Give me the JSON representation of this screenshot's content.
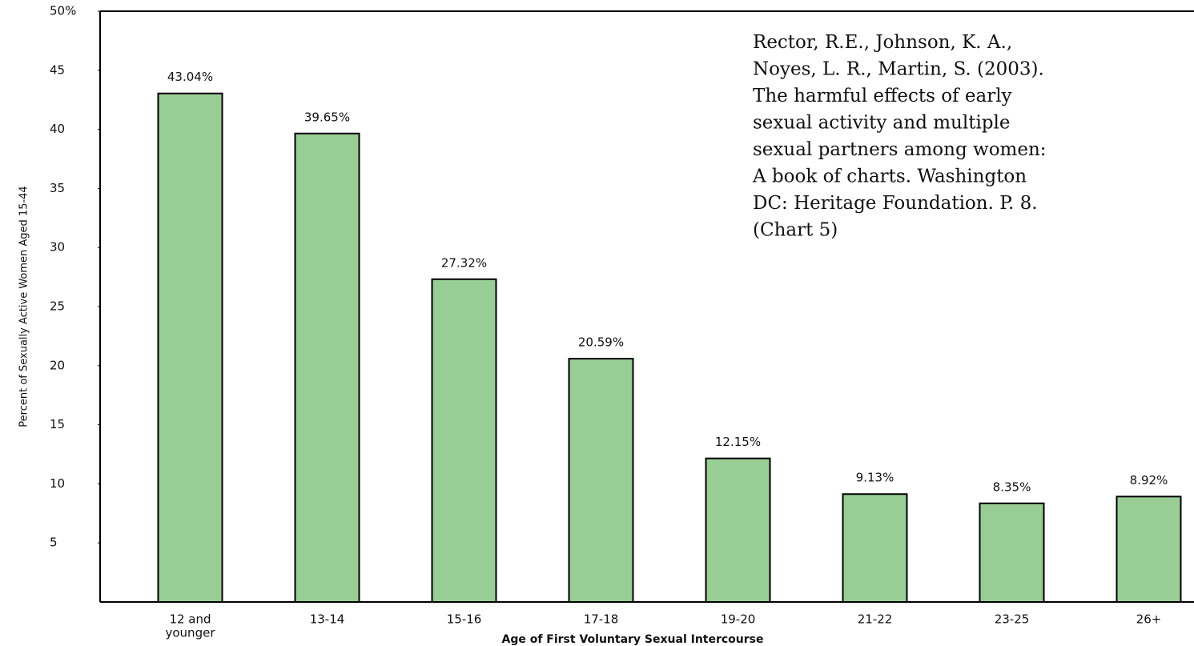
{
  "chart_data": {
    "type": "bar",
    "categories": [
      [
        "12 and",
        "younger"
      ],
      [
        "13-14"
      ],
      [
        "15-16"
      ],
      [
        "17-18"
      ],
      [
        "19-20"
      ],
      [
        "21-22"
      ],
      [
        "23-25"
      ],
      [
        "26+"
      ]
    ],
    "values": [
      43.04,
      39.65,
      27.32,
      20.59,
      12.15,
      9.13,
      8.35,
      8.92
    ],
    "value_labels": [
      "43.04%",
      "39.65%",
      "27.32%",
      "20.59%",
      "12.15%",
      "9.13%",
      "8.35%",
      "8.92%"
    ],
    "color": "#99cd96",
    "ylim": [
      0,
      50
    ],
    "yticks": [
      5,
      10,
      15,
      20,
      25,
      30,
      35,
      40,
      45,
      {
        "value": 50,
        "label": "50%"
      }
    ],
    "ylabel": "Percent of Sexually Active Women Aged 15-44",
    "xlabel": "Age of First Voluntary Sexual Intercourse",
    "annotation": [
      "Rector, R.E., Johnson, K. A.,",
      "Noyes, L. R., Martin, S. (2003).",
      "The harmful effects of early",
      "sexual activity and multiple",
      "sexual partners among women:",
      "A book of charts. Washington",
      "DC: Heritage Foundation. P. 8.",
      "(Chart 5)"
    ]
  }
}
